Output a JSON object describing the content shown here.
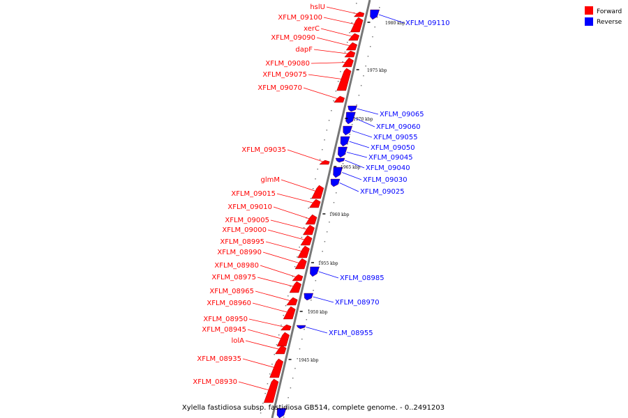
{
  "genome_map": {
    "caption": "Xylella fastidiosa subsp. fastidiosa GB514, complete genome. - 0..2491203",
    "legend": [
      {
        "label": "Forward",
        "color": "#ff0000"
      },
      {
        "label": "Reverse",
        "color": "#0000ff"
      }
    ],
    "colors": {
      "forward": "#ff0000",
      "reverse": "#0000ff",
      "axis": "#9a9a9a"
    },
    "ticks": [
      "1980 kbp",
      "1975 kbp",
      "1970 kbp",
      "1965 kbp",
      "1960 kbp",
      "1955 kbp",
      "1950 kbp",
      "1945 kbp"
    ],
    "forward_genes": [
      "hslU",
      "XFLM_09100",
      "xerC",
      "XFLM_09090",
      "dapF",
      "XFLM_09080",
      "XFLM_09075",
      "XFLM_09070",
      "XFLM_09035",
      "glmM",
      "XFLM_09015",
      "XFLM_09010",
      "XFLM_09005",
      "XFLM_09000",
      "XFLM_08995",
      "XFLM_08990",
      "XFLM_08980",
      "XFLM_08975",
      "XFLM_08965",
      "XFLM_08960",
      "XFLM_08950",
      "XFLM_08945",
      "lolA",
      "XFLM_08935",
      "XFLM_08930"
    ],
    "reverse_genes": [
      "XFLM_09110",
      "XFLM_09065",
      "XFLM_09060",
      "XFLM_09055",
      "XFLM_09050",
      "XFLM_09045",
      "XFLM_09040",
      "XFLM_09030",
      "XFLM_09025",
      "XFLM_08985",
      "XFLM_08970",
      "XFLM_08955"
    ]
  }
}
